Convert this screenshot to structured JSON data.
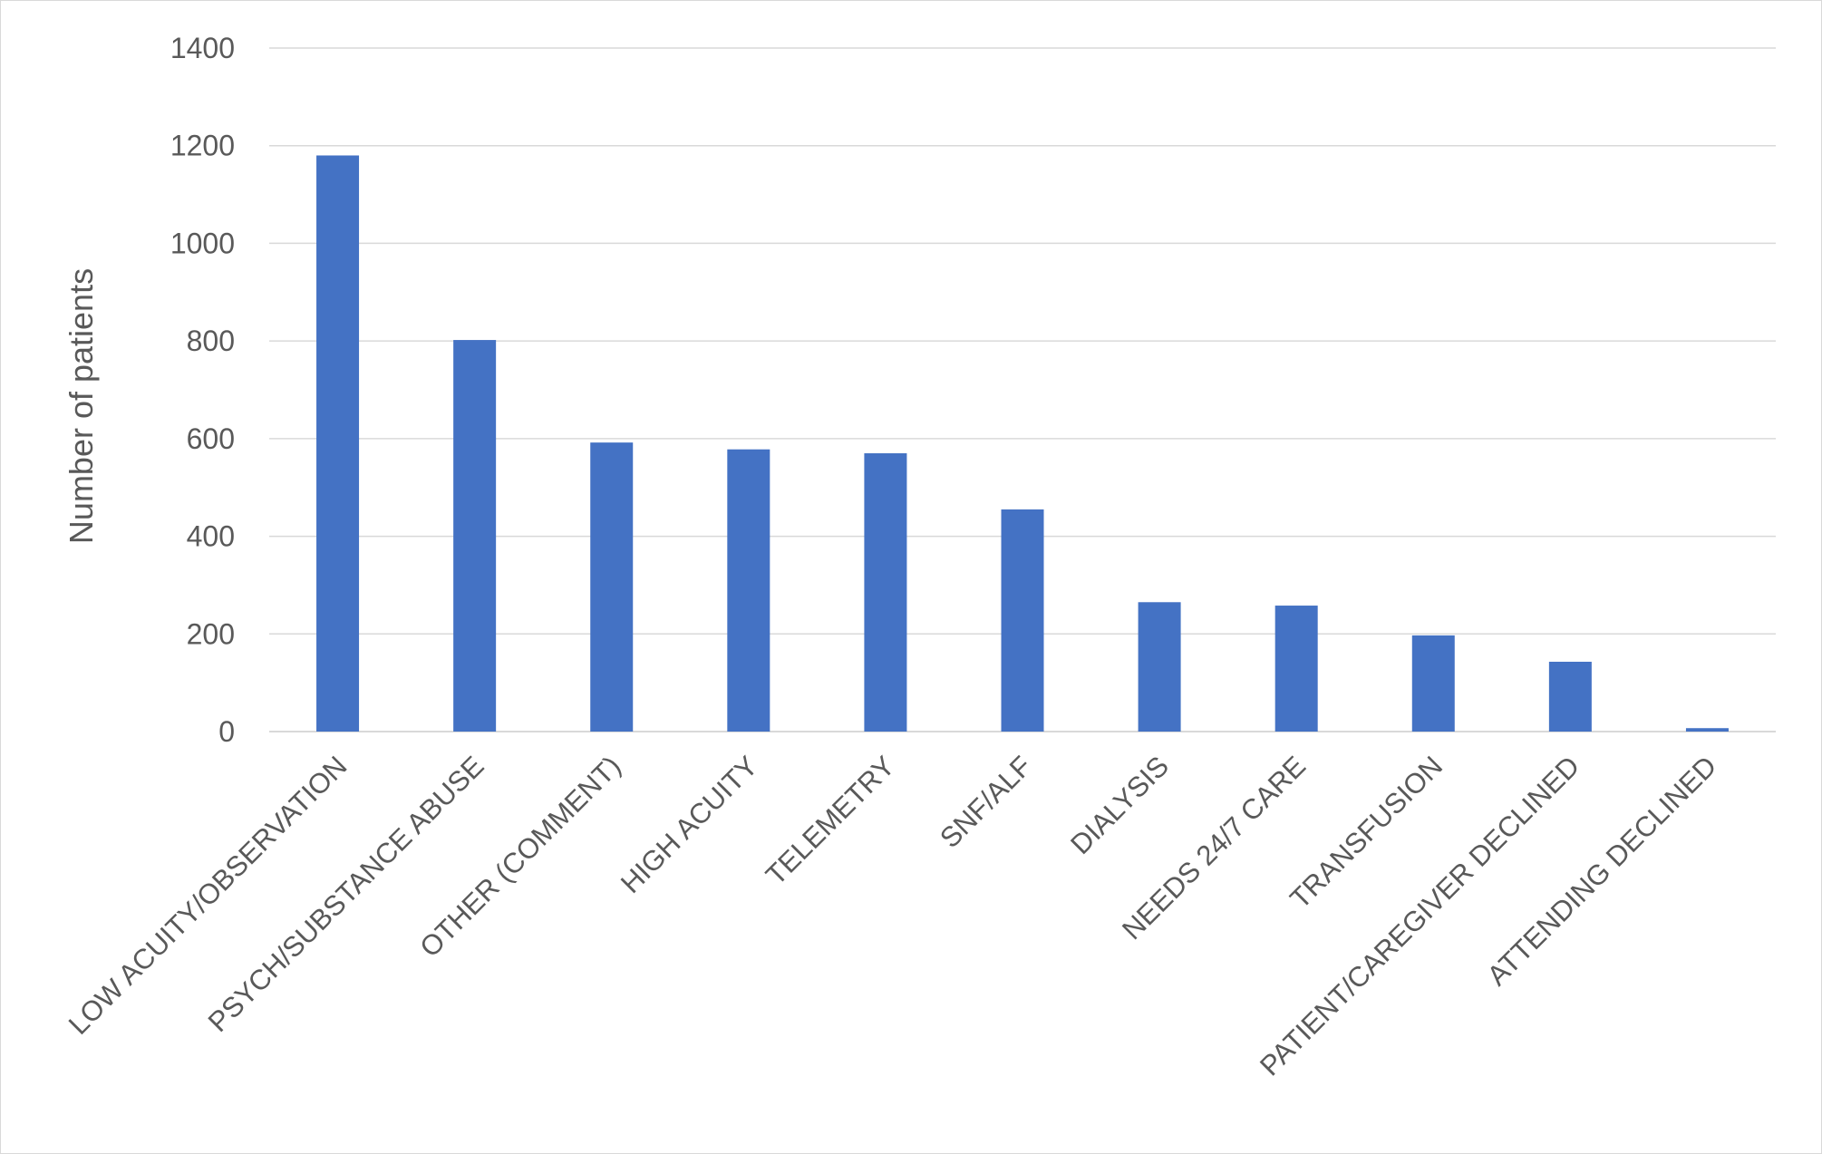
{
  "chart_data": {
    "type": "bar",
    "title": "",
    "xlabel": "",
    "ylabel": "Number of patients",
    "ylim": [
      0,
      1400
    ],
    "yticks": [
      0,
      200,
      400,
      600,
      800,
      1000,
      1200,
      1400
    ],
    "grid": true,
    "legend": "none",
    "bar_color": "#4472C4",
    "gridline_color": "#d9d9d9",
    "text_color": "#595959",
    "categories": [
      "LOW ACUITY/OBSERVATION",
      "PSYCH/SUBSTANCE ABUSE",
      "OTHER (COMMENT)",
      "HIGH ACUITY",
      "TELEMETRY",
      "SNF/ALF",
      "DIALYSIS",
      "NEEDS 24/7 CARE",
      "TRANSFUSION",
      "PATIENT/CAREGIVER DECLINED",
      "ATTENDING DECLINED"
    ],
    "values": [
      1180,
      802,
      592,
      578,
      570,
      455,
      265,
      258,
      197,
      143,
      7
    ]
  }
}
